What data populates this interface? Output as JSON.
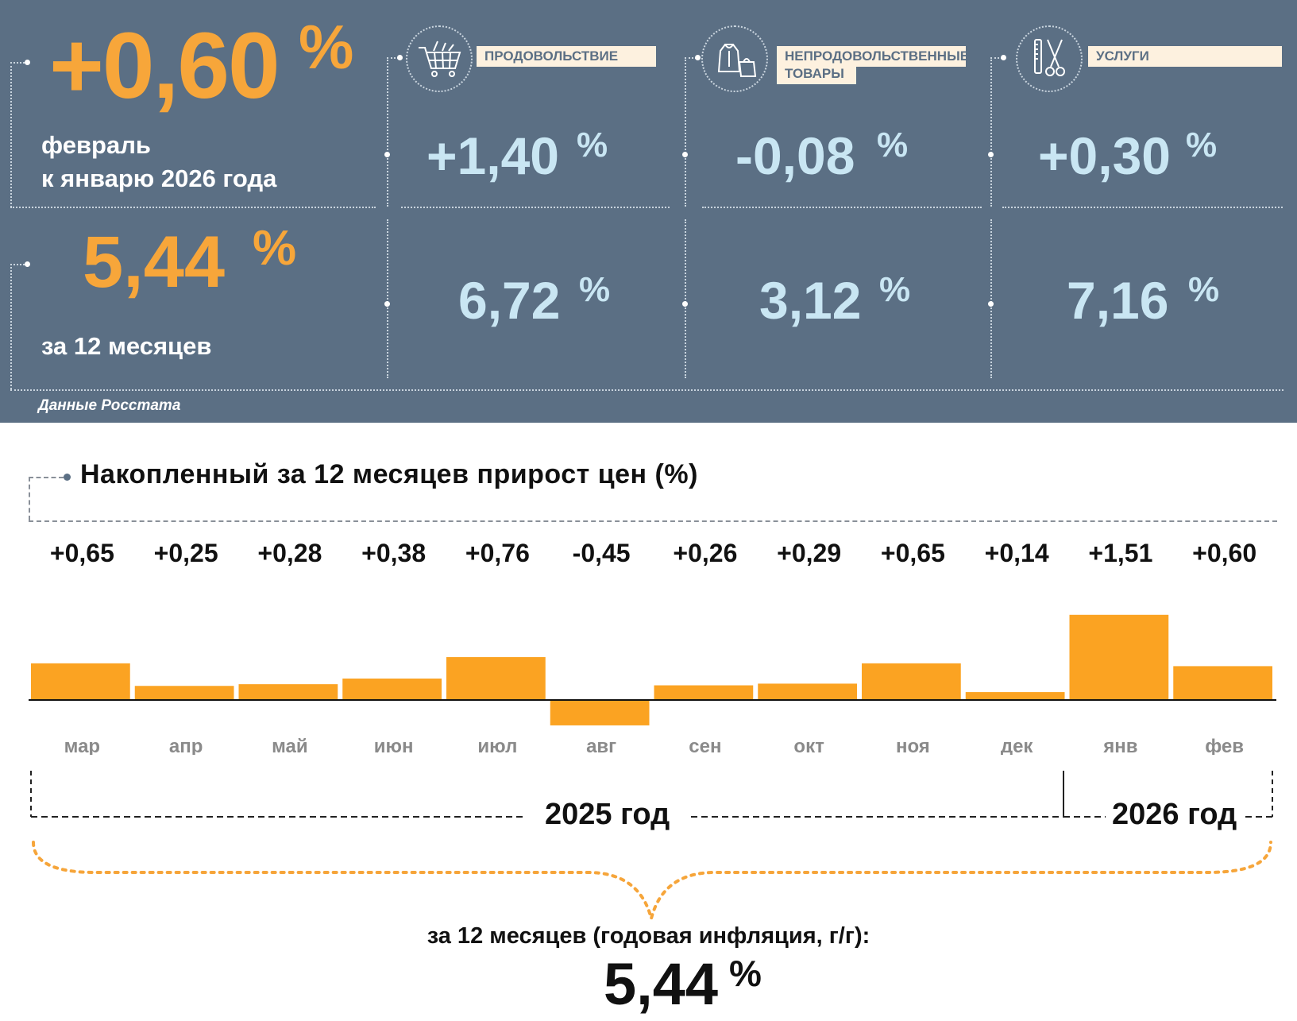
{
  "header": {
    "main_value": "+0,60",
    "main_unit": "%",
    "main_label_line1": "февраль",
    "main_label_line2": "к январю 2026 года",
    "annual_value": "5,44",
    "annual_unit": "%",
    "annual_label": "за 12 месяцев",
    "source": "Данные Росстата",
    "accent_color": "#f7a63a",
    "panel_color": "#5b6f84"
  },
  "categories": [
    {
      "label": "ПРОДОВОЛЬСТВИЕ",
      "icon": "shopping-cart-icon",
      "monthly": "+1,40",
      "annual": "6,72",
      "unit": "%"
    },
    {
      "label_line1": "НЕПРОДОВОЛЬСТВЕННЫЕ",
      "label_line2": "ТОВАРЫ",
      "icon": "clothing-icon",
      "monthly": "-0,08",
      "annual": "3,12",
      "unit": "%"
    },
    {
      "label": "УСЛУГИ",
      "icon": "scissors-comb-icon",
      "monthly": "+0,30",
      "annual": "7,16",
      "unit": "%"
    }
  ],
  "chart_data": {
    "type": "bar",
    "title": "Накопленный за 12 месяцев прирост цен (%)",
    "categories": [
      "мар",
      "апр",
      "май",
      "июн",
      "июл",
      "авг",
      "сен",
      "окт",
      "ноя",
      "дек",
      "янв",
      "фев"
    ],
    "values": [
      0.65,
      0.25,
      0.28,
      0.38,
      0.76,
      -0.45,
      0.26,
      0.29,
      0.65,
      0.14,
      1.51,
      0.6
    ],
    "value_labels": [
      "+0,65",
      "+0,25",
      "+0,28",
      "+0,38",
      "+0,76",
      "-0,45",
      "+0,26",
      "+0,29",
      "+0,65",
      "+0,14",
      "+1,51",
      "+0,60"
    ],
    "bar_color": "#fba322",
    "year_labels": [
      "2025 год",
      "2026 год"
    ],
    "summary_label": "за 12 месяцев (годовая инфляция, г/г):",
    "summary_value": "5,44",
    "summary_unit": "%"
  }
}
